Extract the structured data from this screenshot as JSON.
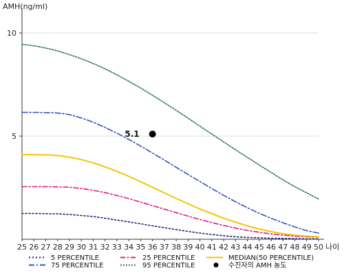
{
  "chart_data": {
    "type": "line",
    "ylabel": "AMH(ng/ml)",
    "xlabel": "나이",
    "xlim": [
      25,
      50
    ],
    "ylim": [
      0,
      11
    ],
    "y_ticks": [
      5,
      10
    ],
    "x": [
      25,
      26,
      27,
      28,
      29,
      30,
      31,
      32,
      33,
      34,
      35,
      36,
      37,
      38,
      39,
      40,
      41,
      42,
      43,
      44,
      45,
      46,
      47,
      48,
      49,
      50
    ],
    "series": [
      {
        "name": "5 PERCENTILE",
        "color": "#1a1a80",
        "dash": "2,3",
        "values": [
          1.25,
          1.25,
          1.24,
          1.23,
          1.2,
          1.15,
          1.1,
          1.02,
          0.93,
          0.84,
          0.75,
          0.65,
          0.56,
          0.47,
          0.38,
          0.3,
          0.23,
          0.17,
          0.12,
          0.09,
          0.07,
          0.05,
          0.04,
          0.03,
          0.02,
          0.02
        ]
      },
      {
        "name": "25 PERCENTILE",
        "color": "#e0187f",
        "dash": "7,3,2,3",
        "values": [
          2.55,
          2.55,
          2.55,
          2.54,
          2.52,
          2.46,
          2.37,
          2.26,
          2.12,
          1.97,
          1.8,
          1.63,
          1.46,
          1.29,
          1.12,
          0.96,
          0.81,
          0.67,
          0.54,
          0.43,
          0.34,
          0.26,
          0.2,
          0.15,
          0.12,
          0.1
        ]
      },
      {
        "name": "MEDIAN(50 PERCENTILE)",
        "color": "#f2c500",
        "dash": "",
        "values": [
          4.1,
          4.1,
          4.09,
          4.06,
          3.98,
          3.86,
          3.7,
          3.51,
          3.29,
          3.05,
          2.79,
          2.52,
          2.25,
          1.98,
          1.72,
          1.47,
          1.24,
          1.02,
          0.83,
          0.65,
          0.5,
          0.37,
          0.27,
          0.2,
          0.15,
          0.12
        ]
      },
      {
        "name": "75 PERCENTILE",
        "color": "#3050c0",
        "dash": "8,3,2,3",
        "values": [
          6.15,
          6.15,
          6.14,
          6.12,
          6.04,
          5.88,
          5.67,
          5.42,
          5.14,
          4.84,
          4.52,
          4.18,
          3.84,
          3.49,
          3.14,
          2.8,
          2.46,
          2.13,
          1.82,
          1.53,
          1.26,
          1.02,
          0.8,
          0.6,
          0.42,
          0.3
        ]
      },
      {
        "name": "95 PERCENTILE",
        "color": "#2f7a4f",
        "dash": "2,2",
        "values": [
          9.45,
          9.38,
          9.27,
          9.13,
          8.95,
          8.75,
          8.52,
          8.26,
          7.97,
          7.66,
          7.33,
          6.98,
          6.62,
          6.25,
          5.87,
          5.48,
          5.1,
          4.72,
          4.34,
          3.97,
          3.6,
          3.24,
          2.88,
          2.55,
          2.25,
          1.95
        ]
      }
    ],
    "points": [
      {
        "name": "수진자의 AMH 농도",
        "x": 36,
        "y": 5.1,
        "label": "5.1",
        "color": "#000000"
      }
    ],
    "legend_position": "bottom"
  }
}
